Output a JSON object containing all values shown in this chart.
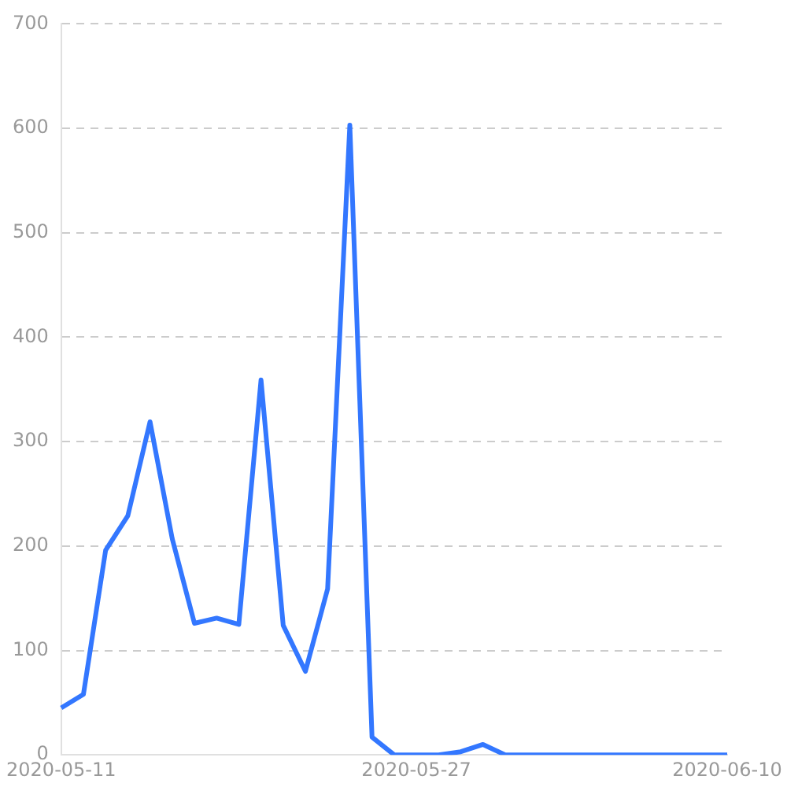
{
  "chart_data": {
    "type": "line",
    "categories": [
      "2020-05-11",
      null,
      null,
      null,
      null,
      null,
      null,
      null,
      null,
      null,
      null,
      null,
      null,
      null,
      null,
      null,
      "2020-05-27",
      null,
      null,
      null,
      null,
      null,
      null,
      null,
      null,
      null,
      null,
      null,
      null,
      null,
      "2020-06-10"
    ],
    "series": [
      {
        "color": "#3377ff",
        "values": [
          45,
          58,
          196,
          229,
          319,
          207,
          126,
          131,
          125,
          359,
          124,
          80,
          159,
          603,
          17,
          0,
          0,
          0,
          3,
          10,
          0,
          0,
          0,
          0,
          0,
          0,
          0,
          0,
          0,
          0,
          0
        ]
      }
    ],
    "ylim": [
      0,
      700
    ],
    "yticks": [
      0,
      100,
      200,
      300,
      400,
      500,
      600,
      700
    ],
    "grid": "y",
    "legend": false,
    "marker": "none",
    "line_style": "solid"
  }
}
